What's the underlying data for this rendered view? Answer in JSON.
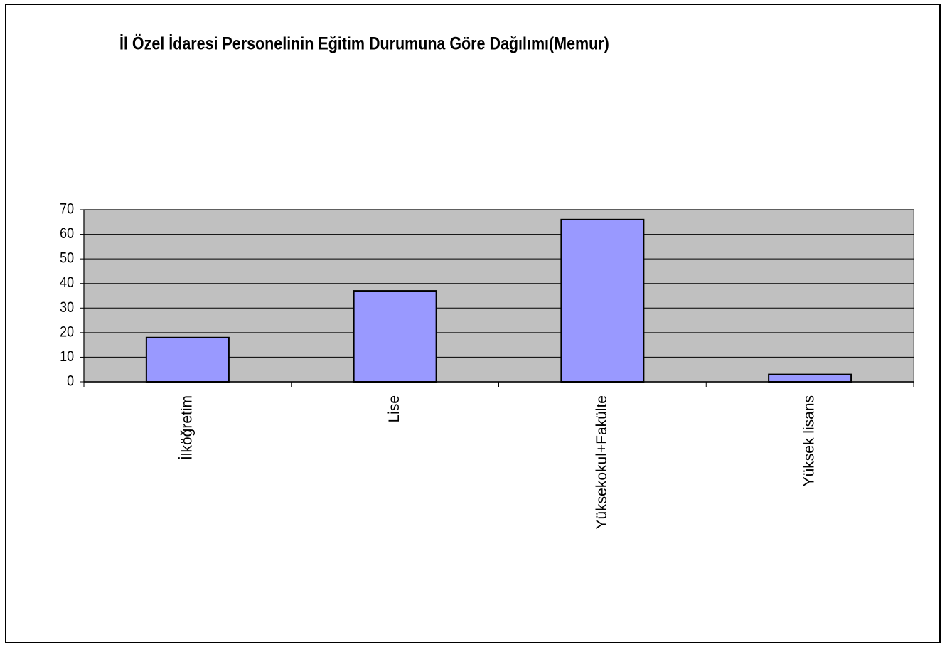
{
  "chart_data": {
    "type": "bar",
    "title": "İl Özel İdaresi Personelinin Eğitim Durumuna Göre Dağılımı(Memur)",
    "categories": [
      "İlköğretim",
      "Lise",
      "Yüksekokul+Fakülte",
      "Yüksek lisans"
    ],
    "values": [
      18,
      37,
      66,
      3
    ],
    "color": "#9999ff",
    "ylim": [
      0,
      70
    ],
    "yticks": [
      0,
      10,
      20,
      30,
      40,
      50,
      60,
      70
    ],
    "grid": true
  }
}
